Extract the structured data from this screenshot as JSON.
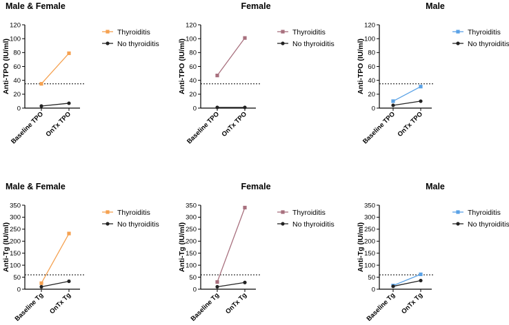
{
  "chart_data": [
    {
      "type": "line",
      "title": "Male & Female",
      "xlabel": "",
      "ylabel": "Anti-TPO (IU/ml)",
      "categories": [
        "Baseline TPO",
        "OnTx TPO"
      ],
      "ylim": [
        0,
        120
      ],
      "yticks": [
        0,
        20,
        40,
        60,
        80,
        100,
        120
      ],
      "threshold": 35,
      "series": [
        {
          "name": "Thyroiditis",
          "values": [
            35,
            79
          ],
          "color": "#F5A150",
          "marker": "square"
        },
        {
          "name": "No thyroiditis",
          "values": [
            3,
            7
          ],
          "color": "#222222",
          "marker": "circle"
        }
      ]
    },
    {
      "type": "line",
      "title": "Female",
      "xlabel": "",
      "ylabel": "Anti-TPO (IU/ml)",
      "categories": [
        "Baseline TPO",
        "OnTx TPO"
      ],
      "ylim": [
        0,
        120
      ],
      "yticks": [
        0,
        20,
        40,
        60,
        80,
        100,
        120
      ],
      "threshold": 35,
      "series": [
        {
          "name": "Thyroiditis",
          "values": [
            47,
            101
          ],
          "color": "#A8707E",
          "marker": "square"
        },
        {
          "name": "No thyroiditis",
          "values": [
            1,
            1
          ],
          "color": "#222222",
          "marker": "circle"
        }
      ]
    },
    {
      "type": "line",
      "title": "Male",
      "xlabel": "",
      "ylabel": "Anti-TPO (IU/ml)",
      "categories": [
        "Baseline TPO",
        "OnTx TPO"
      ],
      "ylim": [
        0,
        120
      ],
      "yticks": [
        0,
        20,
        40,
        60,
        80,
        100,
        120
      ],
      "threshold": 35,
      "series": [
        {
          "name": "Thyroiditis",
          "values": [
            10,
            31
          ],
          "color": "#5AA2E6",
          "marker": "square"
        },
        {
          "name": "No thyroiditis",
          "values": [
            4,
            10
          ],
          "color": "#222222",
          "marker": "circle"
        }
      ]
    },
    {
      "type": "line",
      "title": "Male & Female",
      "xlabel": "",
      "ylabel": "Anti-Tg (IU/ml)",
      "categories": [
        "Baseline Tg",
        "OnTx Tg"
      ],
      "ylim": [
        0,
        350
      ],
      "yticks": [
        0,
        50,
        100,
        150,
        200,
        250,
        300,
        350
      ],
      "threshold": 60,
      "series": [
        {
          "name": "Thyroiditis",
          "values": [
            25,
            232
          ],
          "color": "#F5A150",
          "marker": "square"
        },
        {
          "name": "No thyroiditis",
          "values": [
            10,
            33
          ],
          "color": "#222222",
          "marker": "circle"
        }
      ]
    },
    {
      "type": "line",
      "title": "Female",
      "xlabel": "",
      "ylabel": "Anti-Tg (IU/ml)",
      "categories": [
        "Baseline Tg",
        "OnTx Tg"
      ],
      "ylim": [
        0,
        350
      ],
      "yticks": [
        0,
        50,
        100,
        150,
        200,
        250,
        300,
        350
      ],
      "threshold": 60,
      "series": [
        {
          "name": "Thyroiditis",
          "values": [
            30,
            340
          ],
          "color": "#A8707E",
          "marker": "square"
        },
        {
          "name": "No thyroiditis",
          "values": [
            10,
            28
          ],
          "color": "#222222",
          "marker": "circle"
        }
      ]
    },
    {
      "type": "line",
      "title": "Male",
      "xlabel": "",
      "ylabel": "Anti-Tg (IU/ml)",
      "categories": [
        "Baseline Tg",
        "OnTx Tg"
      ],
      "ylim": [
        0,
        350
      ],
      "yticks": [
        0,
        50,
        100,
        150,
        200,
        250,
        300,
        350
      ],
      "threshold": 60,
      "series": [
        {
          "name": "Thyroiditis",
          "values": [
            15,
            62
          ],
          "color": "#5AA2E6",
          "marker": "square"
        },
        {
          "name": "No thyroiditis",
          "values": [
            12,
            36
          ],
          "color": "#222222",
          "marker": "circle"
        }
      ]
    }
  ]
}
